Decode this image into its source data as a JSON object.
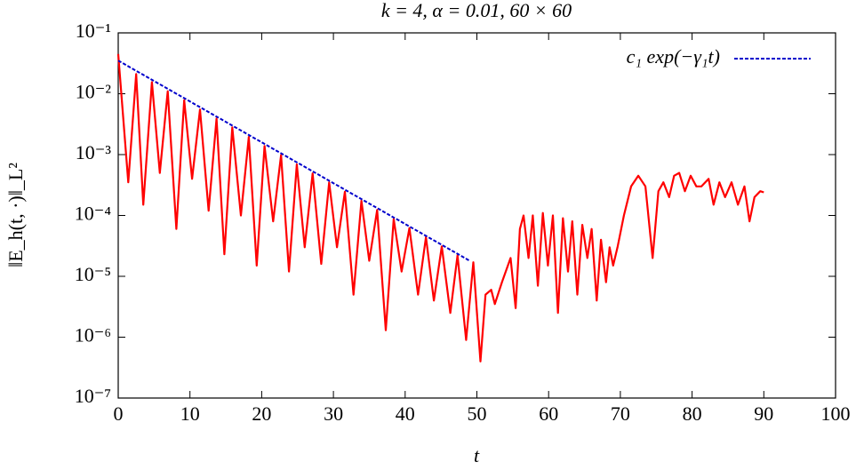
{
  "chart_data": {
    "type": "line",
    "title": "k = 4, α = 0.01, 60 × 60",
    "xlabel": "t",
    "ylabel": "‖E_h(t, ·)‖_L²",
    "log_y": true,
    "legend": "upper right",
    "xlim": [
      0,
      100
    ],
    "xticks": [
      0,
      10,
      20,
      30,
      40,
      50,
      60,
      70,
      80,
      90,
      100
    ],
    "ylim": [
      1e-07,
      0.1
    ],
    "yticks": [
      {
        "value": 1e-07,
        "label": "10⁻⁷"
      },
      {
        "value": 1e-06,
        "label": "10⁻⁶"
      },
      {
        "value": 1e-05,
        "label": "10⁻⁵"
      },
      {
        "value": 0.0001,
        "label": "10⁻⁴"
      },
      {
        "value": 0.001,
        "label": "10⁻³"
      },
      {
        "value": 0.01,
        "label": "10⁻²"
      },
      {
        "value": 0.1,
        "label": "10⁻¹"
      }
    ],
    "series": [
      {
        "color": "#ff0000",
        "x": [
          0,
          1.4,
          2.5,
          3.5,
          4.7,
          5.8,
          6.9,
          8.1,
          9.2,
          10.3,
          11.4,
          12.6,
          13.7,
          14.8,
          15.9,
          17.1,
          18.2,
          19.3,
          20.4,
          21.6,
          22.7,
          23.8,
          24.9,
          26.0,
          27.1,
          28.3,
          29.4,
          30.5,
          31.6,
          32.8,
          33.9,
          35.0,
          36.1,
          37.3,
          38.4,
          39.5,
          40.6,
          41.8,
          42.9,
          44.0,
          45.1,
          46.3,
          47.3,
          48.5,
          49.5,
          50.5,
          51.2,
          52,
          52.5,
          53.5,
          54.7,
          55.4,
          56,
          56.5,
          57.2,
          57.8,
          58.5,
          59.2,
          59.9,
          60.6,
          61.3,
          62,
          62.7,
          63.3,
          64,
          64.7,
          65.4,
          66,
          66.7,
          67.3,
          68,
          68.5,
          69,
          69.6,
          70.5,
          71.5,
          72.5,
          73.5,
          74.5,
          75.3,
          76,
          76.8,
          77.5,
          78.2,
          79,
          79.8,
          80.6,
          81.3,
          82.3,
          83,
          83.8,
          84.6,
          85.5,
          86.4,
          87.3,
          88,
          88.7,
          89.5,
          90
        ],
        "values": [
          0.045,
          0.00035,
          0.021,
          0.00015,
          0.0155,
          0.0005,
          0.011,
          6e-05,
          0.0078,
          0.0004,
          0.0055,
          0.00012,
          0.0039,
          2.3e-05,
          0.0028,
          0.0001,
          0.00195,
          1.5e-05,
          0.00138,
          8e-05,
          0.00098,
          1.2e-05,
          0.00069,
          3e-05,
          0.00049,
          1.6e-05,
          0.00035,
          3e-05,
          0.000245,
          5e-06,
          0.000174,
          1.8e-05,
          0.000123,
          1.3e-06,
          8.7e-05,
          1.2e-05,
          6.2e-05,
          5e-06,
          4.4e-05,
          4e-06,
          3.1e-05,
          2.5e-06,
          2.2e-05,
          9e-07,
          1.7e-05,
          4e-07,
          5e-06,
          6e-06,
          3.5e-06,
          8e-06,
          2e-05,
          3e-06,
          6e-05,
          0.0001,
          2e-05,
          0.0001,
          7e-06,
          0.00011,
          1.5e-05,
          0.0001,
          2.5e-06,
          9e-05,
          1.2e-05,
          8e-05,
          5e-06,
          7e-05,
          2e-05,
          6e-05,
          4e-06,
          4e-05,
          8e-06,
          3e-05,
          1.5e-05,
          3e-05,
          0.0001,
          0.0003,
          0.00045,
          0.0003,
          2e-05,
          0.00025,
          0.00035,
          0.0002,
          0.00045,
          0.0005,
          0.00025,
          0.00045,
          0.0003,
          0.0003,
          0.0004,
          0.00015,
          0.00035,
          0.0002,
          0.00035,
          0.00015,
          0.0003,
          8e-05,
          0.0002,
          0.00025,
          0.00024
        ]
      },
      {
        "name": "c₁ exp(−γ₁t)",
        "color": "#0000cc",
        "dashed": true,
        "x": [
          0,
          49
        ],
        "values": [
          0.035,
          1.8e-05
        ]
      }
    ]
  }
}
